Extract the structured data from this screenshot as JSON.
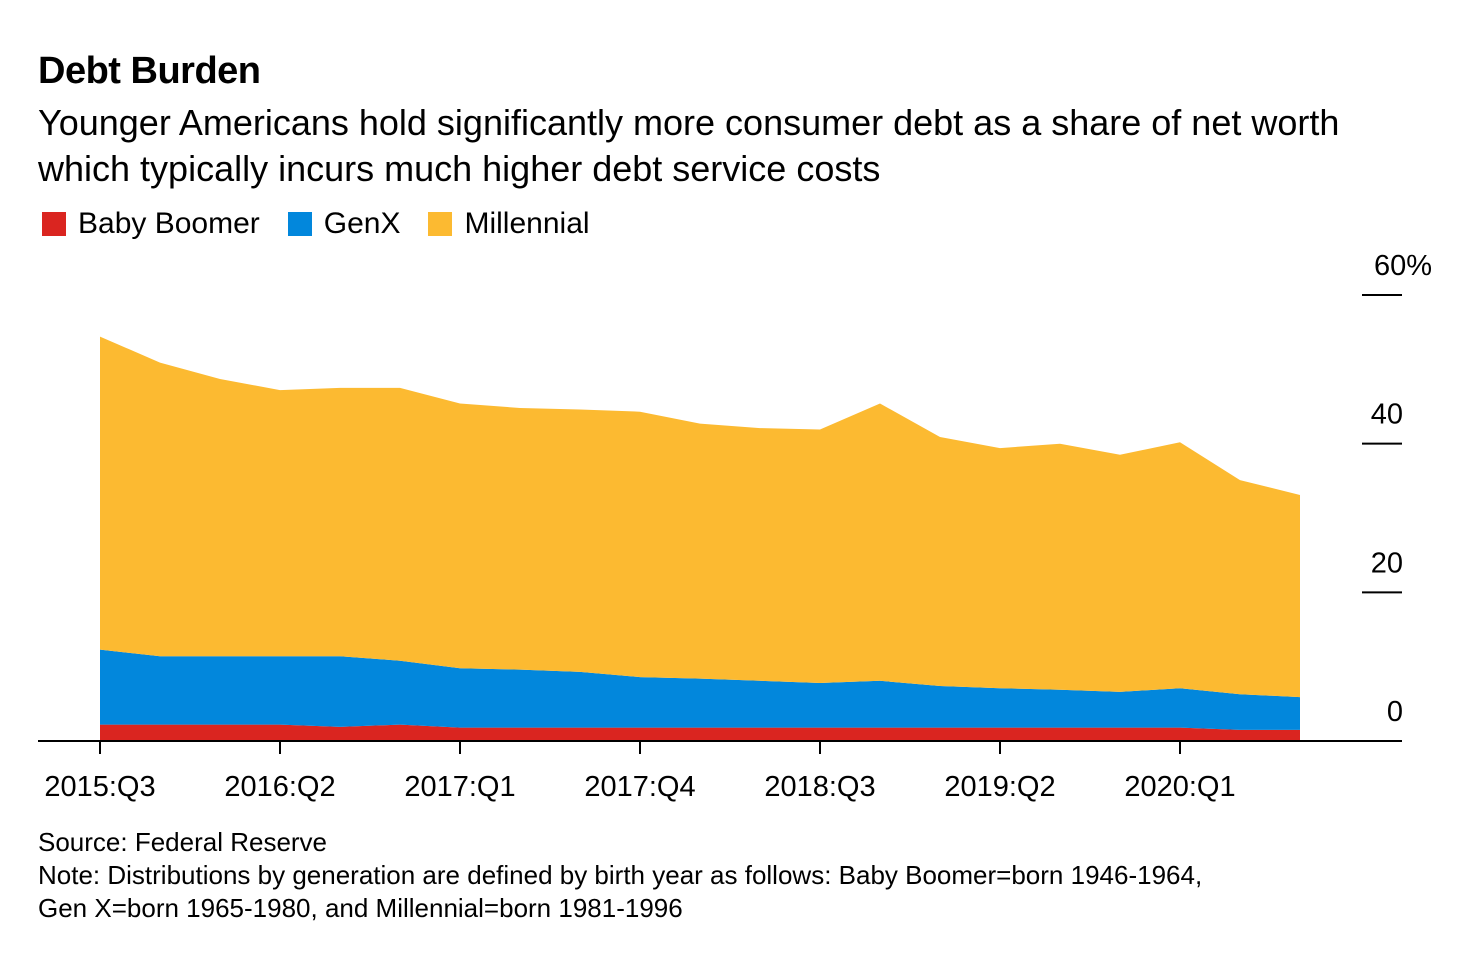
{
  "title": "Debt Burden",
  "subtitle": "Younger Americans hold significantly more consumer debt as a share of net worth which typically incurs much higher debt service costs",
  "legend": [
    {
      "label": "Baby Boomer",
      "color": "#DA2520"
    },
    {
      "label": "GenX",
      "color": "#0287DC"
    },
    {
      "label": "Millennial",
      "color": "#FCBA31"
    }
  ],
  "footer": {
    "source": "Source: Federal Reserve",
    "note_line1": "Note: Distributions by generation are defined by birth year as follows: Baby Boomer=born 1946-1964,",
    "note_line2": "Gen X=born 1965-1980, and Millennial=born 1981-1996"
  },
  "chart_data": {
    "type": "area",
    "stacked": true,
    "title": "Debt Burden",
    "xlabel": "",
    "ylabel": "",
    "y_unit": "%",
    "ylim": [
      0,
      60
    ],
    "yticks": [
      0,
      20,
      40,
      60
    ],
    "ytick_labels": [
      "0",
      "20",
      "40",
      "60%"
    ],
    "y_axis_side": "right",
    "grid": false,
    "legend_position": "top-left",
    "x": [
      "2015:Q3",
      "2015:Q4",
      "2016:Q1",
      "2016:Q2",
      "2016:Q3",
      "2016:Q4",
      "2017:Q1",
      "2017:Q2",
      "2017:Q3",
      "2017:Q4",
      "2018:Q1",
      "2018:Q2",
      "2018:Q3",
      "2018:Q4",
      "2019:Q1",
      "2019:Q2",
      "2019:Q3",
      "2019:Q4",
      "2020:Q1",
      "2020:Q2",
      "2020:Q3"
    ],
    "xtick_labels": [
      "2015:Q3",
      "2016:Q2",
      "2017:Q1",
      "2017:Q4",
      "2018:Q3",
      "2019:Q2",
      "2020:Q1"
    ],
    "series": [
      {
        "name": "Baby Boomer",
        "color": "#DA2520",
        "values": [
          2.2,
          2.2,
          2.2,
          2.2,
          1.9,
          2.2,
          1.8,
          1.8,
          1.8,
          1.8,
          1.8,
          1.8,
          1.8,
          1.8,
          1.8,
          1.8,
          1.8,
          1.8,
          1.8,
          1.5,
          1.5
        ]
      },
      {
        "name": "GenX",
        "color": "#0287DC",
        "values": [
          10.1,
          9.2,
          9.2,
          9.2,
          9.5,
          8.6,
          8.0,
          7.8,
          7.5,
          6.8,
          6.6,
          6.3,
          6.0,
          6.3,
          5.6,
          5.3,
          5.1,
          4.8,
          5.3,
          4.8,
          4.4
        ]
      },
      {
        "name": "Millennial",
        "color": "#FCBA31",
        "values": [
          42.1,
          39.5,
          37.3,
          35.8,
          36.1,
          36.7,
          35.6,
          35.2,
          35.3,
          35.7,
          34.3,
          34.0,
          34.1,
          37.3,
          33.5,
          32.3,
          33.1,
          31.9,
          33.1,
          28.8,
          27.2
        ]
      }
    ]
  }
}
